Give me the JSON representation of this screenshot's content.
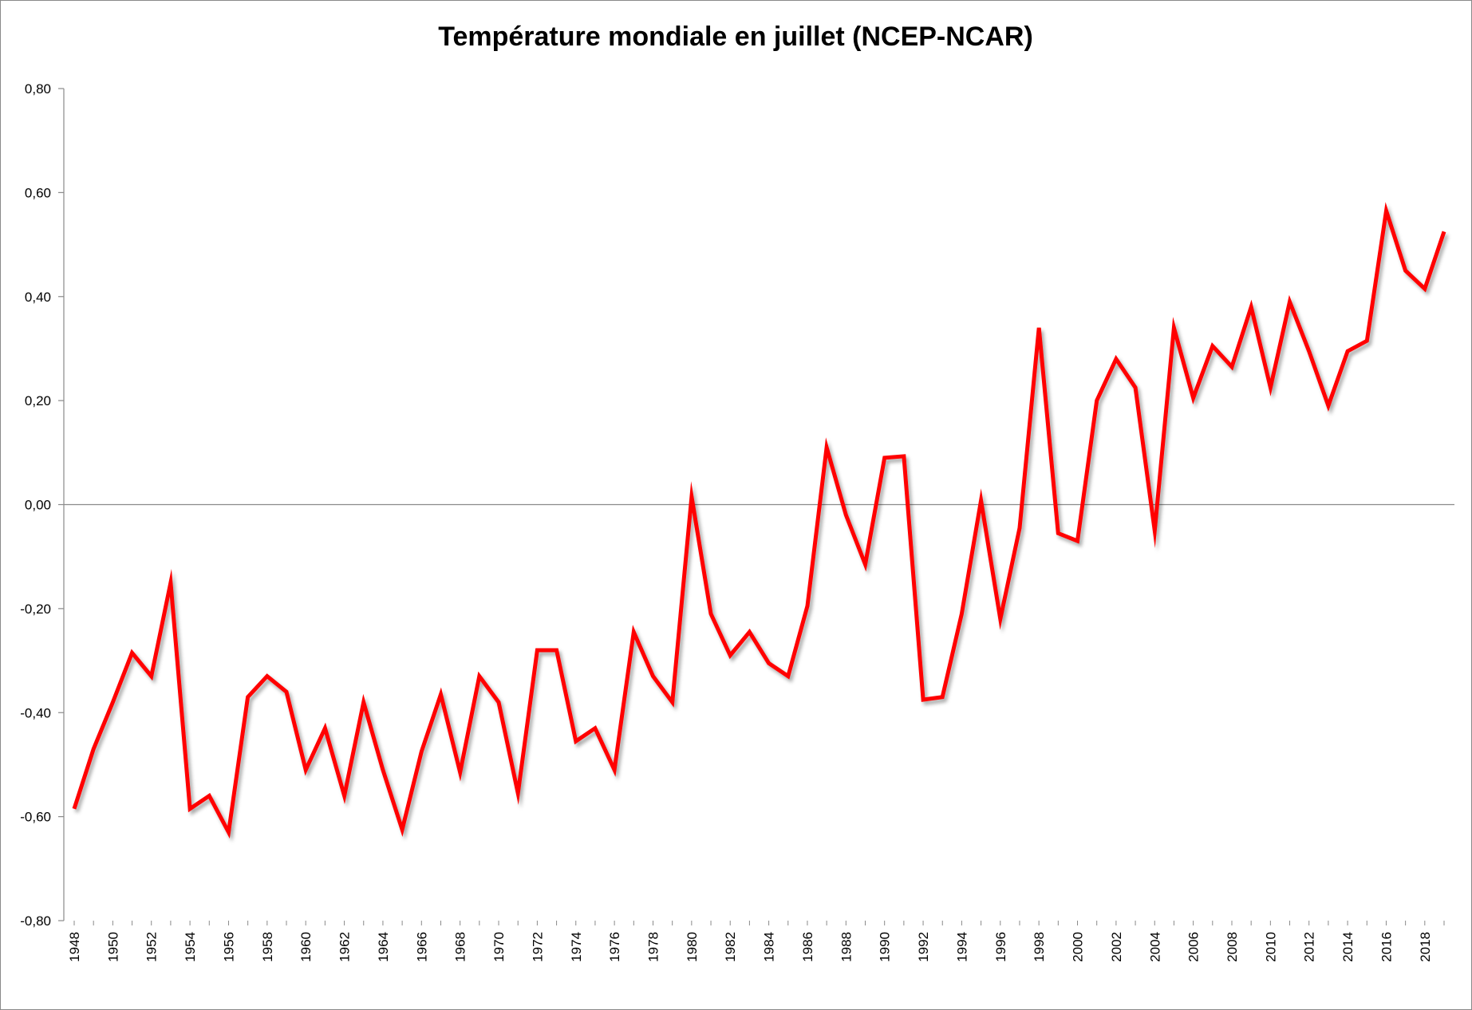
{
  "chart_data": {
    "type": "line",
    "title": "Température mondiale en juillet (NCEP-NCAR)",
    "xlabel": "",
    "ylabel": "",
    "ylim": [
      -0.8,
      0.8
    ],
    "y_ticks": [
      0.8,
      0.6,
      0.4,
      0.2,
      0.0,
      -0.2,
      -0.4,
      -0.6,
      -0.8
    ],
    "y_tick_labels": [
      "0,80",
      "0,60",
      "0,40",
      "0,20",
      "0,00",
      "-0,20",
      "-0,40",
      "-0,60",
      "-0,80"
    ],
    "x_tick_labels": [
      "1948",
      "1950",
      "1952",
      "1954",
      "1956",
      "1958",
      "1960",
      "1962",
      "1964",
      "1966",
      "1968",
      "1970",
      "1972",
      "1974",
      "1976",
      "1978",
      "1980",
      "1982",
      "1984",
      "1986",
      "1988",
      "1990",
      "1992",
      "1994",
      "1996",
      "1998",
      "2000",
      "2002",
      "2004",
      "2006",
      "2008",
      "2010",
      "2012",
      "2014",
      "2016",
      "2018"
    ],
    "grid": false,
    "legend": "none",
    "line_color": "#ff0000",
    "series": [
      {
        "name": "Température mondiale en juillet",
        "x": [
          1948,
          1949,
          1950,
          1951,
          1952,
          1953,
          1954,
          1955,
          1956,
          1957,
          1958,
          1959,
          1960,
          1961,
          1962,
          1963,
          1964,
          1965,
          1966,
          1967,
          1968,
          1969,
          1970,
          1971,
          1972,
          1973,
          1974,
          1975,
          1976,
          1977,
          1978,
          1979,
          1980,
          1981,
          1982,
          1983,
          1984,
          1985,
          1986,
          1987,
          1988,
          1989,
          1990,
          1991,
          1992,
          1993,
          1994,
          1995,
          1996,
          1997,
          1998,
          1999,
          2000,
          2001,
          2002,
          2003,
          2004,
          2005,
          2006,
          2007,
          2008,
          2009,
          2010,
          2011,
          2012,
          2013,
          2014,
          2015,
          2016,
          2017,
          2018,
          2019
        ],
        "values": [
          -0.585,
          -0.47,
          -0.38,
          -0.285,
          -0.33,
          -0.15,
          -0.585,
          -0.56,
          -0.63,
          -0.37,
          -0.33,
          -0.36,
          -0.51,
          -0.43,
          -0.56,
          -0.38,
          -0.51,
          -0.625,
          -0.475,
          -0.365,
          -0.515,
          -0.33,
          -0.38,
          -0.555,
          -0.28,
          -0.28,
          -0.455,
          -0.43,
          -0.51,
          -0.245,
          -0.33,
          -0.38,
          0.015,
          -0.21,
          -0.29,
          -0.245,
          -0.305,
          -0.33,
          -0.195,
          0.11,
          -0.02,
          -0.115,
          0.09,
          0.093,
          -0.375,
          -0.37,
          -0.21,
          0.008,
          -0.22,
          -0.045,
          0.34,
          -0.055,
          -0.07,
          0.2,
          0.28,
          0.225,
          -0.05,
          0.34,
          0.205,
          0.305,
          0.265,
          0.38,
          0.225,
          0.39,
          0.295,
          0.19,
          0.295,
          0.315,
          0.565,
          0.45,
          0.415,
          0.525
        ]
      }
    ]
  }
}
